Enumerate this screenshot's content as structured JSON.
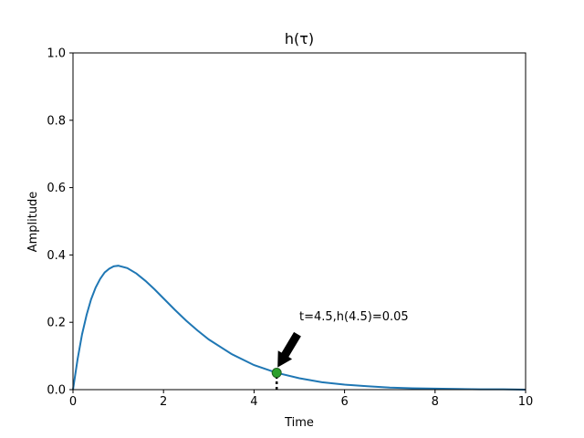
{
  "chart_data": {
    "type": "line",
    "title": "h(τ)",
    "xlabel": "Time",
    "ylabel": "Amplitude",
    "xlim": [
      0,
      10
    ],
    "ylim": [
      0,
      1
    ],
    "xticks": [
      0,
      2,
      4,
      6,
      8,
      10
    ],
    "yticks": [
      0.0,
      0.2,
      0.4,
      0.6,
      0.8,
      1.0
    ],
    "xtick_labels": [
      "0",
      "2",
      "4",
      "6",
      "8",
      "10"
    ],
    "ytick_labels": [
      "0.0",
      "0.2",
      "0.4",
      "0.6",
      "0.8",
      "1.0"
    ],
    "grid": false,
    "series": [
      {
        "color": "#1f77b4",
        "x": [
          0,
          0.1,
          0.2,
          0.3,
          0.4,
          0.5,
          0.6,
          0.7,
          0.8,
          0.9,
          1.0,
          1.2,
          1.4,
          1.6,
          1.8,
          2.0,
          2.25,
          2.5,
          2.75,
          3.0,
          3.5,
          4.0,
          4.5,
          5.0,
          5.5,
          6.0,
          6.5,
          7.0,
          7.5,
          8.0,
          8.5,
          9.0,
          9.5,
          10.0
        ],
        "y": [
          0,
          0.09,
          0.164,
          0.222,
          0.268,
          0.303,
          0.329,
          0.348,
          0.359,
          0.366,
          0.368,
          0.361,
          0.345,
          0.323,
          0.298,
          0.271,
          0.237,
          0.205,
          0.176,
          0.149,
          0.106,
          0.073,
          0.05,
          0.034,
          0.022,
          0.015,
          0.01,
          0.006,
          0.004,
          0.003,
          0.002,
          0.001,
          0.001,
          0.0
        ]
      }
    ],
    "marker": {
      "x": 4.5,
      "y": 0.05,
      "color": "#2ca02c"
    },
    "vline": {
      "x": 4.5,
      "y0": 0,
      "y1": 0.05,
      "style": "dotted",
      "color": "#000000"
    },
    "annotation": {
      "text": "t=4.5,h(4.5)=0.05",
      "xy": [
        4.5,
        0.05
      ],
      "xytext": [
        5.0,
        0.2
      ]
    }
  }
}
